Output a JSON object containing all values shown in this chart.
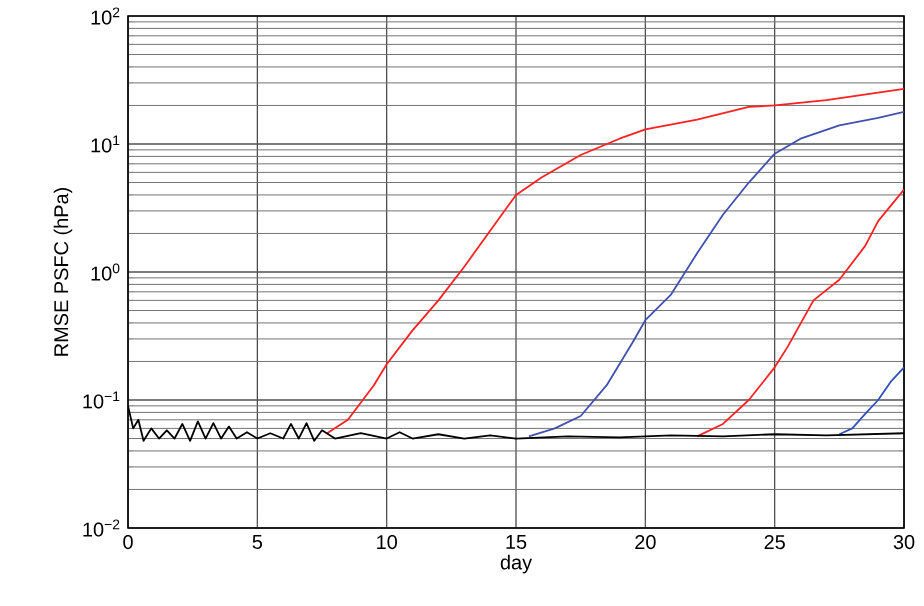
{
  "chart_data": {
    "type": "line",
    "xlabel": "day",
    "ylabel": "RMSE PSFC (hPa)",
    "log": "y",
    "grid": true,
    "xlim": [
      0,
      30
    ],
    "xticks": [
      0,
      5,
      10,
      15,
      20,
      25,
      30
    ],
    "ylim": [
      0.01,
      100
    ],
    "yticks": [
      {
        "value": 0.01,
        "label": "10$^{−2}$"
      },
      {
        "value": 0.1,
        "label": "10$^{−1}$"
      },
      {
        "value": 1,
        "label": "10$^{0}$"
      },
      {
        "value": 10,
        "label": "10$^{1}$"
      },
      {
        "value": 100,
        "label": "10$^{2}$"
      }
    ],
    "series": [
      {
        "color": "#ff2020",
        "x": [
          7.7,
          8.5,
          9.5,
          10,
          11,
          12,
          13,
          14,
          15,
          16,
          17.5,
          19,
          20,
          22,
          24,
          25,
          27,
          30
        ],
        "values": [
          0.055,
          0.07,
          0.13,
          0.19,
          0.35,
          0.6,
          1.1,
          2.1,
          4,
          5.5,
          8.2,
          11,
          13,
          15.5,
          19.5,
          20,
          22,
          27
        ]
      },
      {
        "color": "#4050b0",
        "x": [
          15.5,
          16.5,
          17.5,
          18.5,
          19.5,
          20,
          21,
          22,
          23,
          24,
          25,
          26,
          27.5,
          29,
          30
        ],
        "values": [
          0.052,
          0.06,
          0.075,
          0.13,
          0.28,
          0.42,
          0.67,
          1.4,
          2.8,
          5,
          8.4,
          11,
          14,
          16,
          17.8
        ]
      },
      {
        "color": "#ff2020",
        "x": [
          22,
          23,
          24,
          25,
          25.5,
          26.5,
          27.5,
          28.5,
          29,
          30
        ],
        "values": [
          0.052,
          0.065,
          0.1,
          0.18,
          0.26,
          0.6,
          0.87,
          1.6,
          2.5,
          4.4
        ]
      },
      {
        "color": "#3050c0",
        "x": [
          27.5,
          28,
          28.5,
          29,
          29.5,
          30
        ],
        "values": [
          0.054,
          0.06,
          0.078,
          0.1,
          0.14,
          0.18
        ]
      },
      {
        "color": "#000000",
        "x": [
          0,
          0.2,
          0.4,
          0.6,
          0.9,
          1.2,
          1.5,
          1.8,
          2.1,
          2.4,
          2.7,
          3.0,
          3.3,
          3.6,
          3.9,
          4.2,
          4.6,
          5.0,
          5.5,
          6.0,
          6.3,
          6.6,
          6.9,
          7.2,
          7.5,
          8.0,
          9.0,
          10.0,
          10.5,
          11.0,
          12.0,
          13.0,
          14.0,
          15.0,
          17.0,
          19.0,
          21.0,
          23.0,
          25.0,
          27.0,
          30.0
        ],
        "values": [
          0.09,
          0.06,
          0.07,
          0.048,
          0.06,
          0.05,
          0.058,
          0.05,
          0.065,
          0.048,
          0.068,
          0.05,
          0.066,
          0.05,
          0.062,
          0.05,
          0.056,
          0.05,
          0.055,
          0.05,
          0.065,
          0.05,
          0.066,
          0.048,
          0.058,
          0.05,
          0.055,
          0.05,
          0.056,
          0.05,
          0.054,
          0.05,
          0.053,
          0.05,
          0.052,
          0.051,
          0.053,
          0.052,
          0.054,
          0.053,
          0.055
        ]
      }
    ]
  }
}
